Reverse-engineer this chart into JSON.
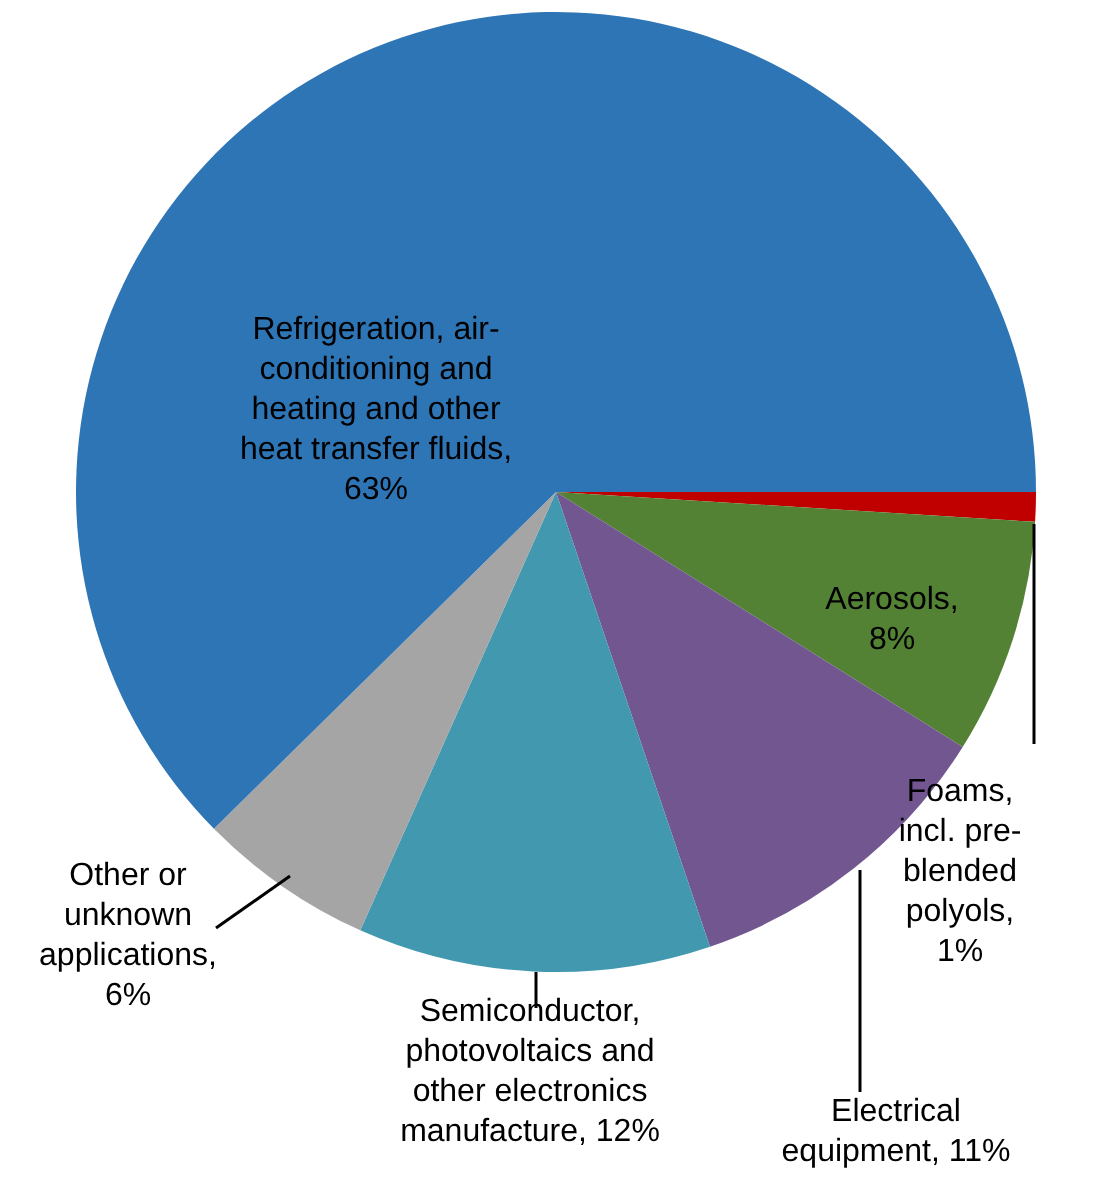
{
  "chart_data": {
    "type": "pie",
    "categories": [
      "Foams, incl. pre-blended polyols, 1%",
      "Aerosols, 8%",
      "Electrical equipment, 11%",
      "Semiconductor, photovoltaics and other electronics manufacture, 12%",
      "Other or unknown applications, 6%",
      "Refrigeration, air-conditioning and heating and other heat transfer fluids, 63%"
    ],
    "values": [
      1,
      8,
      11,
      12,
      6,
      63
    ],
    "colors": [
      "#c00000",
      "#548235",
      "#725690",
      "#4198af",
      "#a5a5a5",
      "#2e75b6"
    ],
    "legend": false
  }
}
